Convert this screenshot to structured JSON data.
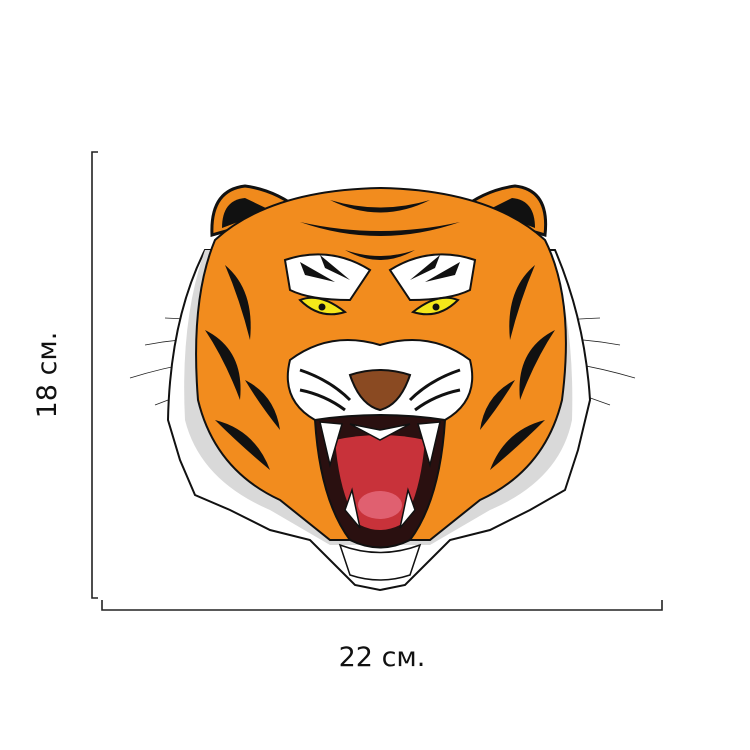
{
  "width_label": "22 см.",
  "height_label": "18 см."
}
